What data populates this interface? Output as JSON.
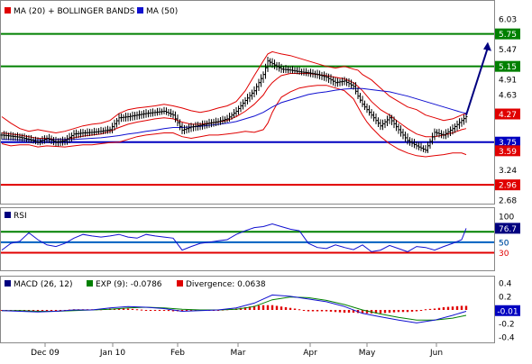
{
  "chart_data": [
    {
      "type": "line",
      "panel": "price",
      "legend": [
        {
          "label": "MA (20) + BOLLINGER BANDS",
          "color": "#e00000"
        },
        {
          "label": "MA (50)",
          "color": "#1010d0"
        }
      ],
      "y_ticks": [
        "6.03",
        "5.47",
        "4.91",
        "4.63",
        "3.24",
        "2.68"
      ],
      "ylim": [
        2.68,
        6.31
      ],
      "levels": [
        {
          "value": 5.75,
          "label": "5.75",
          "color": "#008000"
        },
        {
          "value": 5.15,
          "label": "5.15",
          "color": "#008000"
        },
        {
          "value": 3.75,
          "label": "3.75",
          "color": "#0000c0"
        },
        {
          "value": 2.96,
          "label": "2.96",
          "color": "#e00000"
        }
      ],
      "value_tags": [
        {
          "value": 4.27,
          "label": "4.27",
          "color": "#e00000"
        },
        {
          "value": 3.59,
          "label": "3.59",
          "color": "#e00000"
        }
      ],
      "price": {
        "t": [
          0,
          10,
          20,
          30,
          40,
          50,
          60,
          70,
          80,
          90,
          100,
          110,
          120,
          130,
          140,
          150,
          160,
          170,
          180,
          190,
          200,
          210,
          220,
          230,
          240,
          250,
          260,
          270,
          280,
          290,
          295,
          300,
          305,
          310,
          320,
          330,
          340,
          350,
          360,
          370,
          380,
          390,
          395,
          400,
          405,
          410,
          420,
          430,
          440,
          450,
          460,
          470,
          480,
          490,
          500,
          510,
          515
        ],
        "close": [
          3.88,
          3.86,
          3.84,
          3.8,
          3.75,
          3.82,
          3.75,
          3.78,
          3.9,
          3.92,
          3.93,
          3.95,
          3.98,
          4.2,
          4.22,
          4.25,
          4.28,
          4.3,
          4.32,
          4.25,
          3.97,
          4.03,
          4.06,
          4.1,
          4.13,
          4.18,
          4.32,
          4.52,
          4.7,
          5.0,
          5.25,
          5.2,
          5.15,
          5.1,
          5.08,
          5.05,
          5.03,
          5.0,
          4.95,
          4.85,
          4.88,
          4.78,
          4.6,
          4.45,
          4.35,
          4.25,
          4.05,
          4.2,
          3.98,
          3.78,
          3.68,
          3.6,
          3.93,
          3.88,
          4.0,
          4.15,
          4.22
        ],
        "upper": [
          4.22,
          4.1,
          4.0,
          3.95,
          3.98,
          3.95,
          3.92,
          3.95,
          4.0,
          4.05,
          4.08,
          4.1,
          4.15,
          4.28,
          4.35,
          4.38,
          4.4,
          4.42,
          4.45,
          4.42,
          4.38,
          4.33,
          4.3,
          4.33,
          4.38,
          4.42,
          4.5,
          4.7,
          4.98,
          5.25,
          5.38,
          5.42,
          5.4,
          5.38,
          5.35,
          5.3,
          5.25,
          5.2,
          5.15,
          5.12,
          5.15,
          5.1,
          5.08,
          5.0,
          4.95,
          4.9,
          4.75,
          4.6,
          4.5,
          4.4,
          4.35,
          4.25,
          4.2,
          4.15,
          4.18,
          4.25,
          4.28
        ],
        "middle": [
          3.92,
          3.9,
          3.88,
          3.85,
          3.82,
          3.82,
          3.8,
          3.8,
          3.83,
          3.86,
          3.88,
          3.9,
          3.95,
          4.02,
          4.08,
          4.12,
          4.15,
          4.18,
          4.2,
          4.18,
          4.12,
          4.08,
          4.08,
          4.1,
          4.12,
          4.15,
          4.22,
          4.32,
          4.45,
          4.62,
          4.75,
          4.85,
          4.92,
          4.98,
          5.02,
          5.02,
          5.02,
          5.0,
          4.98,
          4.95,
          4.92,
          4.85,
          4.78,
          4.7,
          4.6,
          4.5,
          4.35,
          4.25,
          4.12,
          4.0,
          3.9,
          3.85,
          3.85,
          3.88,
          3.92,
          3.98,
          4.0
        ],
        "lower": [
          3.72,
          3.68,
          3.7,
          3.7,
          3.66,
          3.68,
          3.67,
          3.66,
          3.68,
          3.7,
          3.7,
          3.72,
          3.74,
          3.75,
          3.8,
          3.85,
          3.88,
          3.9,
          3.92,
          3.92,
          3.85,
          3.82,
          3.85,
          3.88,
          3.88,
          3.9,
          3.92,
          3.95,
          3.93,
          3.98,
          4.1,
          4.3,
          4.45,
          4.58,
          4.68,
          4.75,
          4.78,
          4.8,
          4.8,
          4.75,
          4.7,
          4.55,
          4.4,
          4.25,
          4.12,
          4.02,
          3.85,
          3.72,
          3.62,
          3.55,
          3.5,
          3.48,
          3.5,
          3.52,
          3.55,
          3.55,
          3.52
        ],
        "ma50": [
          3.8,
          3.8,
          3.79,
          3.79,
          3.79,
          3.79,
          3.8,
          3.8,
          3.8,
          3.81,
          3.82,
          3.83,
          3.85,
          3.87,
          3.9,
          3.92,
          3.95,
          3.97,
          4.0,
          4.02,
          4.02,
          4.03,
          4.04,
          4.06,
          4.08,
          4.1,
          4.13,
          4.18,
          4.23,
          4.3,
          4.35,
          4.4,
          4.44,
          4.48,
          4.53,
          4.58,
          4.63,
          4.66,
          4.68,
          4.71,
          4.73,
          4.74,
          4.74,
          4.74,
          4.73,
          4.72,
          4.7,
          4.68,
          4.64,
          4.6,
          4.55,
          4.5,
          4.45,
          4.4,
          4.35,
          4.3,
          4.28
        ]
      },
      "projection": {
        "from": 4.25,
        "to": 5.5
      }
    },
    {
      "type": "line",
      "panel": "rsi",
      "legend": [
        {
          "label": "RSI",
          "color": "#000080"
        }
      ],
      "y_ticks": [
        "100",
        "50"
      ],
      "ylim": [
        0,
        110
      ],
      "levels": [
        {
          "value": 70,
          "label": "",
          "color": "#008000"
        },
        {
          "value": 50,
          "label": "50",
          "color": "#0060c0"
        },
        {
          "value": 30,
          "label": "30",
          "color": "#e00000"
        }
      ],
      "value_tag": {
        "value": 76.7,
        "label": "76.7",
        "color": "#000080"
      },
      "series": [
        {
          "name": "RSI",
          "x": [
            0,
            10,
            20,
            30,
            40,
            50,
            60,
            70,
            80,
            90,
            100,
            110,
            120,
            130,
            140,
            150,
            160,
            170,
            180,
            190,
            200,
            210,
            220,
            230,
            240,
            250,
            260,
            270,
            280,
            290,
            300,
            310,
            320,
            330,
            340,
            350,
            360,
            370,
            380,
            390,
            400,
            410,
            420,
            430,
            440,
            450,
            460,
            470,
            480,
            490,
            500,
            510,
            515
          ],
          "y": [
            35,
            48,
            52,
            68,
            55,
            45,
            42,
            48,
            58,
            65,
            62,
            60,
            62,
            65,
            60,
            58,
            65,
            62,
            60,
            58,
            35,
            42,
            48,
            50,
            53,
            55,
            65,
            72,
            78,
            80,
            85,
            80,
            75,
            72,
            48,
            40,
            38,
            45,
            40,
            36,
            45,
            32,
            35,
            44,
            38,
            32,
            42,
            40,
            35,
            42,
            48,
            55,
            76.7
          ]
        }
      ]
    },
    {
      "type": "bar",
      "panel": "macd",
      "legend": [
        {
          "label": "MACD (26, 12)",
          "color": "#000080"
        },
        {
          "label": "EXP (9): -0.0786",
          "color": "#008000"
        },
        {
          "label": "Divergence: 0.0638",
          "color": "#e00000"
        }
      ],
      "y_ticks": [
        "0.4",
        "0.2",
        "-0.2",
        "-0.4"
      ],
      "ylim": [
        -0.45,
        0.45
      ],
      "value_tag": {
        "value": -0.01,
        "label": "-0.01",
        "color": "#0000c0"
      },
      "series": [
        {
          "name": "MACD",
          "x": [
            0,
            20,
            40,
            60,
            80,
            100,
            120,
            140,
            160,
            180,
            200,
            220,
            240,
            260,
            280,
            300,
            320,
            340,
            360,
            380,
            400,
            420,
            440,
            460,
            480,
            500,
            515
          ],
          "y": [
            -0.01,
            -0.02,
            -0.03,
            -0.02,
            0.0,
            0.0,
            0.03,
            0.05,
            0.04,
            0.02,
            -0.02,
            -0.01,
            0.0,
            0.03,
            0.1,
            0.22,
            0.2,
            0.16,
            0.12,
            0.05,
            -0.05,
            -0.1,
            -0.15,
            -0.19,
            -0.15,
            -0.08,
            -0.02
          ]
        },
        {
          "name": "EXP",
          "x": [
            0,
            20,
            40,
            60,
            80,
            100,
            120,
            140,
            160,
            180,
            200,
            220,
            240,
            260,
            280,
            300,
            320,
            340,
            360,
            380,
            400,
            420,
            440,
            460,
            480,
            500,
            515
          ],
          "y": [
            -0.01,
            -0.01,
            -0.02,
            -0.02,
            -0.01,
            0.0,
            0.01,
            0.03,
            0.04,
            0.03,
            0.01,
            0.0,
            0.0,
            0.01,
            0.05,
            0.15,
            0.19,
            0.18,
            0.14,
            0.08,
            0.0,
            -0.06,
            -0.11,
            -0.15,
            -0.15,
            -0.12,
            -0.08
          ]
        }
      ],
      "divergence": {
        "x": [
          0,
          10,
          20,
          30,
          40,
          50,
          60,
          70,
          80,
          90,
          100,
          110,
          120,
          130,
          140,
          150,
          160,
          170,
          180,
          190,
          200,
          210,
          220,
          230,
          240,
          250,
          260,
          270,
          280,
          290,
          300,
          310,
          320,
          330,
          340,
          350,
          360,
          370,
          380,
          390,
          400,
          410,
          420,
          430,
          440,
          450,
          460,
          470,
          480,
          490,
          500,
          510,
          515
        ],
        "y": [
          0.0,
          -0.01,
          -0.01,
          -0.01,
          -0.01,
          -0.01,
          -0.01,
          0.0,
          0.01,
          0.01,
          0.01,
          0.01,
          0.02,
          0.02,
          0.02,
          0.01,
          0.0,
          -0.01,
          -0.01,
          -0.02,
          -0.02,
          -0.01,
          -0.01,
          0.0,
          0.0,
          0.01,
          0.02,
          0.04,
          0.06,
          0.07,
          0.07,
          0.05,
          0.03,
          0.01,
          -0.02,
          -0.02,
          -0.02,
          -0.03,
          -0.04,
          -0.04,
          -0.05,
          -0.05,
          -0.05,
          -0.04,
          -0.03,
          -0.03,
          -0.02,
          0.01,
          0.02,
          0.04,
          0.05,
          0.06,
          0.06
        ]
      }
    }
  ],
  "x_axis": {
    "labels": [
      {
        "t": 48,
        "text": "Dec 09"
      },
      {
        "t": 123,
        "text": "Jan 10"
      },
      {
        "t": 195,
        "text": "Feb"
      },
      {
        "t": 262,
        "text": "Mar"
      },
      {
        "t": 342,
        "text": "Apr"
      },
      {
        "t": 405,
        "text": "May"
      },
      {
        "t": 482,
        "text": "Jun"
      }
    ]
  }
}
